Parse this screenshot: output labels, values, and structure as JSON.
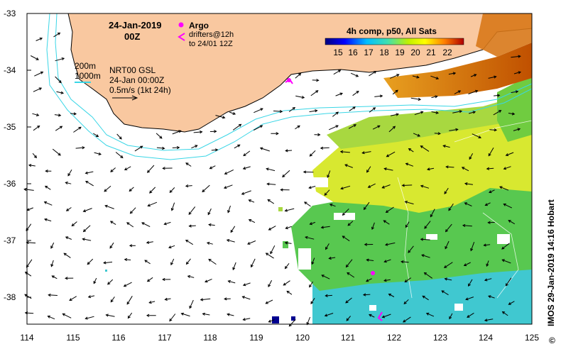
{
  "map": {
    "date_title": "24-Jan-2019",
    "time_title": "00Z",
    "argo_label": "Argo",
    "drifters_label_1": "drifters@12h",
    "drifters_label_2": "to 24/01 12Z",
    "depth_label_1": "200m",
    "depth_label_2": "1000m",
    "product_line_1": "NRT00 GSL",
    "product_line_2": "24-Jan 00:00Z",
    "scale_label": "0.5m/s (1kt 24h)",
    "colorbar_title": "4h comp, p50, All Sats",
    "colorbar_ticks": [
      "15",
      "16",
      "17",
      "18",
      "19",
      "20",
      "21",
      "22"
    ],
    "credit": "IMOS 29-Jan-2019 14:16 Hobart",
    "copyright_symbol": "©",
    "x_ticks": [
      "114",
      "115",
      "116",
      "117",
      "118",
      "119",
      "120",
      "121",
      "122",
      "123",
      "124",
      "125"
    ],
    "y_ticks": [
      "-33",
      "-34",
      "-35",
      "-36",
      "-37",
      "-38"
    ],
    "colors": {
      "land": "#f9c8a0",
      "coast_isobath": "#3ad6e6",
      "argo": "#ff00ff",
      "sst_warm": "#c86400",
      "sst_mid": "#d8e820",
      "sst_green": "#58c850",
      "sst_cool": "#40c8d8"
    }
  }
}
